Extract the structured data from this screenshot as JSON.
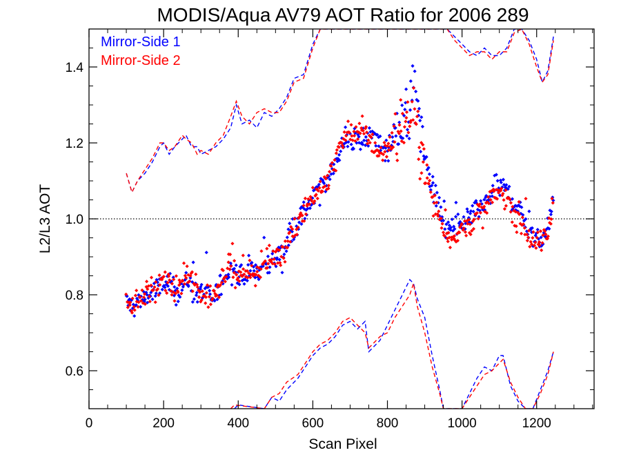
{
  "chart_data": {
    "type": "scatter",
    "title": "MODIS/Aqua AV79 AOT Ratio for 2006 289",
    "xlabel": "Scan Pixel",
    "ylabel": "L2/L3 AOT",
    "xlim": [
      0,
      1354
    ],
    "ylim": [
      0.5,
      1.5
    ],
    "xticks": [
      0,
      200,
      400,
      600,
      800,
      1000,
      1200
    ],
    "yticks": [
      0.6,
      0.8,
      1.0,
      1.2,
      1.4
    ],
    "xtick_labels": [
      "0",
      "200",
      "400",
      "600",
      "800",
      "1000",
      "1200"
    ],
    "ytick_labels": [
      "0.6",
      "0.8",
      "1.0",
      "1.2",
      "1.4"
    ],
    "reference_line": {
      "y": 1.0,
      "style": "dotted",
      "color": "#000000"
    },
    "legend_position": "top-left",
    "series": [
      {
        "name": "Mirror-Side 1",
        "color": "#0000ff",
        "mean_curve": {
          "x": [
            100,
            120,
            140,
            160,
            180,
            200,
            220,
            240,
            260,
            280,
            300,
            320,
            340,
            360,
            380,
            395,
            410,
            425,
            440,
            460,
            480,
            500,
            520,
            540,
            560,
            580,
            600,
            620,
            640,
            660,
            680,
            700,
            720,
            740,
            760,
            780,
            800,
            820,
            840,
            860,
            870,
            880,
            890,
            900,
            920,
            940,
            955,
            970,
            990,
            1010,
            1030,
            1050,
            1070,
            1090,
            1100,
            1110,
            1130,
            1150,
            1170,
            1190,
            1210,
            1230,
            1245
          ],
          "y": [
            0.78,
            0.77,
            0.79,
            0.8,
            0.81,
            0.83,
            0.82,
            0.81,
            0.84,
            0.81,
            0.8,
            0.79,
            0.8,
            0.84,
            0.88,
            0.86,
            0.84,
            0.87,
            0.86,
            0.87,
            0.88,
            0.9,
            0.91,
            0.96,
            1.0,
            1.02,
            1.05,
            1.07,
            1.11,
            1.15,
            1.19,
            1.21,
            1.2,
            1.22,
            1.21,
            1.2,
            1.18,
            1.23,
            1.26,
            1.28,
            1.33,
            1.3,
            1.24,
            1.16,
            1.08,
            1.02,
            0.98,
            0.97,
            0.97,
            0.99,
            1.01,
            1.02,
            1.05,
            1.07,
            1.09,
            1.08,
            1.06,
            1.03,
            0.99,
            0.95,
            0.94,
            0.98,
            1.05
          ]
        },
        "upper_bound": {
          "x": [
            100,
            115,
            130,
            150,
            170,
            190,
            200,
            215,
            230,
            250,
            260,
            275,
            290,
            300,
            320,
            340,
            360,
            380,
            395,
            410,
            430,
            450,
            470,
            490,
            510,
            530,
            550,
            575,
            600,
            620,
            630,
            870,
            890,
            920,
            960,
            980,
            1000,
            1020,
            1040,
            1060,
            1080,
            1100,
            1120,
            1140,
            1160,
            1180,
            1200,
            1215,
            1230,
            1245
          ],
          "y": [
            1.12,
            1.07,
            1.1,
            1.12,
            1.15,
            1.19,
            1.2,
            1.17,
            1.19,
            1.21,
            1.22,
            1.19,
            1.19,
            1.17,
            1.18,
            1.19,
            1.21,
            1.24,
            1.3,
            1.25,
            1.26,
            1.24,
            1.28,
            1.27,
            1.29,
            1.32,
            1.37,
            1.38,
            1.46,
            1.5,
            1.5,
            1.5,
            1.5,
            1.5,
            1.5,
            1.48,
            1.46,
            1.44,
            1.43,
            1.45,
            1.43,
            1.43,
            1.45,
            1.5,
            1.5,
            1.47,
            1.42,
            1.36,
            1.39,
            1.48
          ]
        },
        "lower_bound": {
          "x": [
            390,
            400,
            470,
            490,
            510,
            530,
            560,
            580,
            600,
            620,
            640,
            660,
            680,
            700,
            720,
            740,
            750,
            760,
            780,
            800,
            820,
            840,
            860,
            870,
            880,
            900,
            920,
            940,
            950,
            1000,
            1040,
            1060,
            1080,
            1100,
            1110,
            1130,
            1150,
            1170,
            1190,
            1210,
            1230,
            1245
          ],
          "y": [
            0.5,
            0.51,
            0.5,
            0.53,
            0.52,
            0.55,
            0.58,
            0.61,
            0.64,
            0.66,
            0.67,
            0.69,
            0.72,
            0.73,
            0.71,
            0.73,
            0.65,
            0.66,
            0.68,
            0.72,
            0.76,
            0.8,
            0.84,
            0.83,
            0.79,
            0.74,
            0.64,
            0.55,
            0.5,
            0.5,
            0.58,
            0.61,
            0.6,
            0.64,
            0.64,
            0.56,
            0.52,
            0.5,
            0.5,
            0.55,
            0.6,
            0.65
          ]
        }
      },
      {
        "name": "Mirror-Side 2",
        "color": "#ff0000",
        "mean_curve": {
          "x": [
            100,
            120,
            140,
            160,
            180,
            200,
            220,
            240,
            260,
            280,
            300,
            320,
            340,
            360,
            380,
            395,
            410,
            425,
            440,
            460,
            480,
            500,
            520,
            540,
            560,
            580,
            600,
            620,
            640,
            660,
            680,
            700,
            720,
            740,
            760,
            780,
            800,
            820,
            840,
            860,
            870,
            880,
            890,
            900,
            920,
            940,
            955,
            970,
            990,
            1010,
            1030,
            1050,
            1070,
            1090,
            1100,
            1110,
            1130,
            1150,
            1170,
            1190,
            1210,
            1230,
            1245
          ],
          "y": [
            0.79,
            0.78,
            0.8,
            0.81,
            0.82,
            0.84,
            0.81,
            0.82,
            0.85,
            0.83,
            0.79,
            0.8,
            0.81,
            0.85,
            0.89,
            0.84,
            0.86,
            0.87,
            0.85,
            0.88,
            0.89,
            0.9,
            0.92,
            0.95,
            0.99,
            1.03,
            1.06,
            1.08,
            1.1,
            1.16,
            1.2,
            1.23,
            1.22,
            1.23,
            1.2,
            1.17,
            1.19,
            1.22,
            1.25,
            1.27,
            1.29,
            1.26,
            1.19,
            1.13,
            1.06,
            1.0,
            0.97,
            0.95,
            0.96,
            0.98,
            1.0,
            1.01,
            1.04,
            1.06,
            1.07,
            1.06,
            1.04,
            1.0,
            0.97,
            0.94,
            0.93,
            0.97,
            1.04
          ]
        },
        "upper_bound": {
          "x": [
            100,
            115,
            130,
            150,
            170,
            190,
            200,
            215,
            230,
            250,
            260,
            275,
            290,
            300,
            320,
            340,
            360,
            380,
            395,
            410,
            430,
            450,
            470,
            490,
            510,
            530,
            550,
            575,
            600,
            620,
            630,
            870,
            890,
            920,
            960,
            980,
            1000,
            1020,
            1040,
            1060,
            1080,
            1100,
            1120,
            1140,
            1160,
            1180,
            1200,
            1215,
            1230,
            1245
          ],
          "y": [
            1.12,
            1.07,
            1.1,
            1.13,
            1.16,
            1.2,
            1.2,
            1.18,
            1.19,
            1.22,
            1.21,
            1.2,
            1.17,
            1.18,
            1.17,
            1.2,
            1.22,
            1.27,
            1.31,
            1.27,
            1.25,
            1.28,
            1.29,
            1.28,
            1.28,
            1.31,
            1.36,
            1.37,
            1.45,
            1.5,
            1.5,
            1.5,
            1.5,
            1.5,
            1.5,
            1.47,
            1.45,
            1.43,
            1.44,
            1.44,
            1.42,
            1.44,
            1.44,
            1.49,
            1.5,
            1.46,
            1.4,
            1.36,
            1.38,
            1.47
          ]
        },
        "lower_bound": {
          "x": [
            380,
            390,
            470,
            490,
            510,
            530,
            560,
            580,
            600,
            620,
            640,
            660,
            680,
            700,
            720,
            740,
            750,
            760,
            780,
            800,
            820,
            840,
            860,
            870,
            880,
            900,
            920,
            940,
            950,
            1000,
            1040,
            1060,
            1080,
            1100,
            1110,
            1130,
            1150,
            1170,
            1190,
            1210,
            1230,
            1245
          ],
          "y": [
            0.5,
            0.51,
            0.5,
            0.53,
            0.54,
            0.57,
            0.59,
            0.62,
            0.65,
            0.67,
            0.68,
            0.7,
            0.73,
            0.74,
            0.72,
            0.7,
            0.66,
            0.67,
            0.69,
            0.7,
            0.74,
            0.77,
            0.8,
            0.83,
            0.77,
            0.7,
            0.61,
            0.54,
            0.5,
            0.5,
            0.56,
            0.59,
            0.6,
            0.62,
            0.63,
            0.57,
            0.53,
            0.5,
            0.5,
            0.54,
            0.59,
            0.65
          ]
        }
      }
    ]
  }
}
